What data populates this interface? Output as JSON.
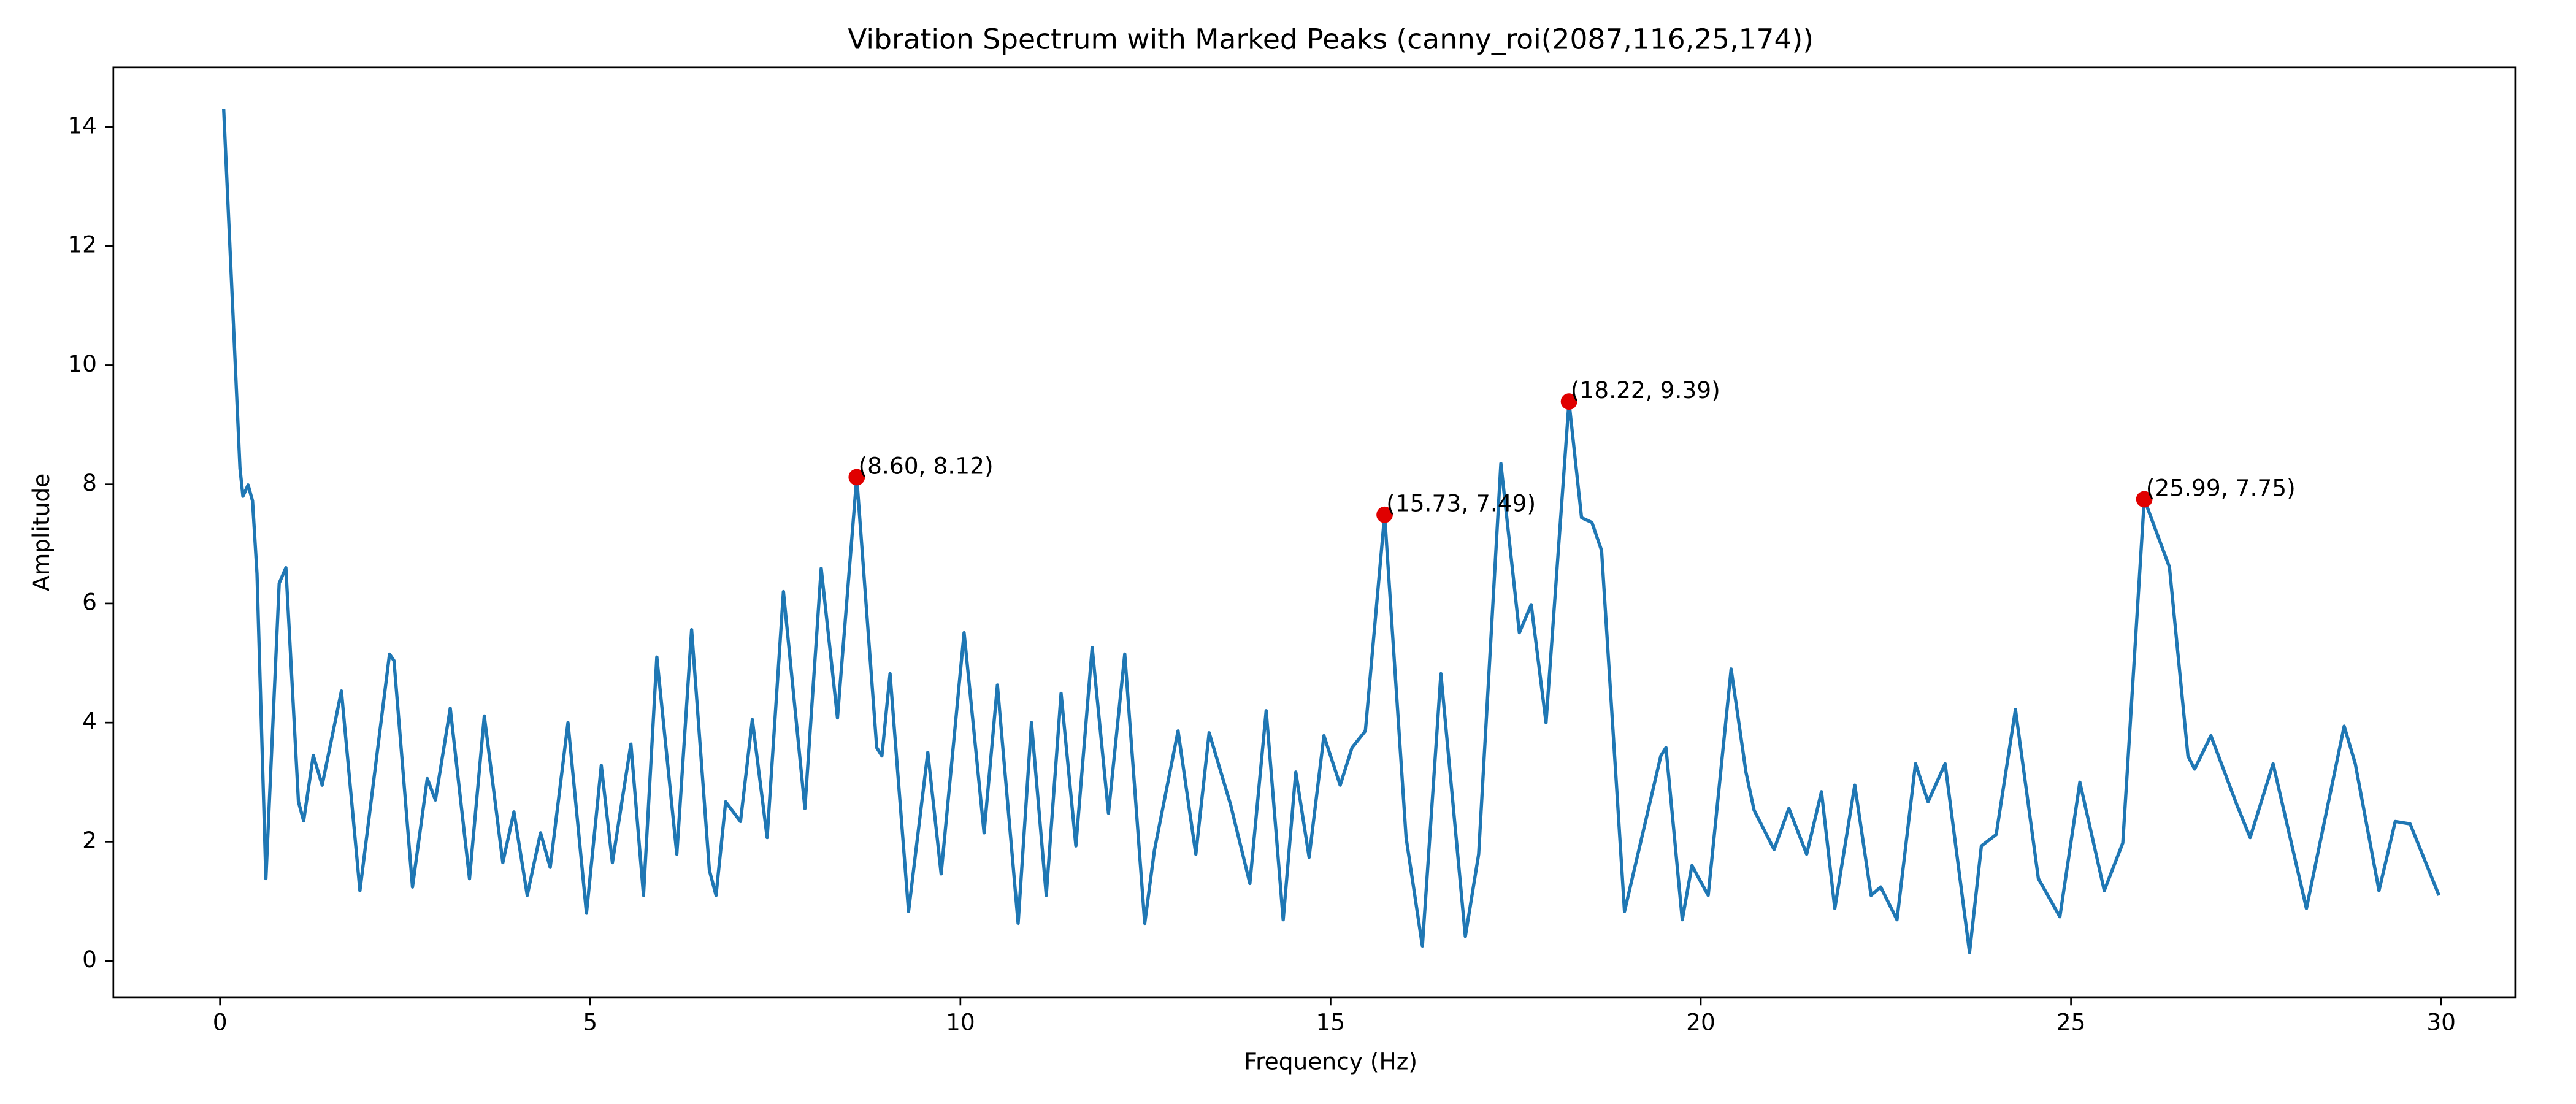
{
  "chart_data": {
    "type": "line",
    "title": "Vibration Spectrum with Marked Peaks (canny_roi(2087,116,25,174))",
    "xlabel": "Frequency (Hz)",
    "ylabel": "Amplitude",
    "xlim": [
      -1.44,
      31.0
    ],
    "ylim": [
      -0.61,
      15.0
    ],
    "xticks": [
      0,
      5,
      10,
      15,
      20,
      25,
      30
    ],
    "yticks": [
      0,
      2,
      4,
      6,
      8,
      10,
      12,
      14
    ],
    "x": [
      0.05,
      0.27,
      0.31,
      0.38,
      0.44,
      0.5,
      0.62,
      0.8,
      0.89,
      1.06,
      1.13,
      1.26,
      1.38,
      1.64,
      1.89,
      2.29,
      2.35,
      2.6,
      2.8,
      2.91,
      3.11,
      3.37,
      3.57,
      3.82,
      3.97,
      4.15,
      4.33,
      4.46,
      4.7,
      4.95,
      5.15,
      5.3,
      5.55,
      5.72,
      5.9,
      6.17,
      6.37,
      6.61,
      6.7,
      6.83,
      7.03,
      7.19,
      7.39,
      7.61,
      7.9,
      8.12,
      8.34,
      8.6,
      8.87,
      8.94,
      9.05,
      9.3,
      9.56,
      9.74,
      10.05,
      10.32,
      10.5,
      10.78,
      10.96,
      11.16,
      11.36,
      11.56,
      11.78,
      12.0,
      12.22,
      12.49,
      12.62,
      12.94,
      13.18,
      13.36,
      13.65,
      13.91,
      14.13,
      14.36,
      14.53,
      14.71,
      14.91,
      15.13,
      15.29,
      15.47,
      15.73,
      16.02,
      16.24,
      16.49,
      16.82,
      17.0,
      17.3,
      17.55,
      17.71,
      17.91,
      18.22,
      18.39,
      18.53,
      18.66,
      18.97,
      19.46,
      19.53,
      19.75,
      19.88,
      20.1,
      20.41,
      20.61,
      20.72,
      20.99,
      21.19,
      21.43,
      21.63,
      21.81,
      22.08,
      22.3,
      22.43,
      22.65,
      22.9,
      23.07,
      23.3,
      23.63,
      23.79,
      23.99,
      24.25,
      24.56,
      24.85,
      25.12,
      25.45,
      25.7,
      25.99,
      26.33,
      26.58,
      26.67,
      26.89,
      27.24,
      27.42,
      27.73,
      28.18,
      28.69,
      28.84,
      29.16,
      29.38,
      29.58,
      29.97
    ],
    "series": [
      {
        "color": "#1f77b4",
        "values": [
          14.3,
          8.27,
          7.8,
          7.99,
          7.72,
          6.5,
          1.38,
          6.34,
          6.6,
          2.67,
          2.35,
          3.45,
          2.95,
          4.53,
          1.18,
          5.15,
          5.04,
          1.24,
          3.06,
          2.7,
          4.24,
          1.38,
          4.11,
          1.65,
          2.5,
          1.1,
          2.15,
          1.57,
          4.0,
          0.8,
          3.28,
          1.65,
          3.64,
          1.1,
          5.1,
          1.79,
          5.56,
          1.52,
          1.1,
          2.67,
          2.34,
          4.05,
          2.07,
          6.2,
          2.56,
          6.59,
          4.08,
          8.12,
          3.58,
          3.44,
          4.82,
          0.83,
          3.5,
          1.46,
          5.51,
          2.15,
          4.63,
          0.63,
          4.0,
          1.1,
          4.49,
          1.93,
          5.26,
          2.48,
          5.15,
          0.63,
          1.85,
          3.86,
          1.79,
          3.83,
          2.62,
          1.3,
          4.2,
          0.69,
          3.17,
          1.74,
          3.78,
          2.95,
          3.58,
          3.86,
          7.49,
          2.07,
          0.25,
          4.82,
          0.41,
          1.79,
          8.35,
          5.51,
          5.98,
          4.0,
          9.39,
          7.44,
          7.36,
          6.89,
          0.83,
          3.44,
          3.58,
          0.69,
          1.6,
          1.1,
          4.9,
          3.17,
          2.53,
          1.87,
          2.56,
          1.79,
          2.84,
          0.88,
          2.95,
          1.1,
          1.24,
          0.69,
          3.31,
          2.67,
          3.31,
          0.14,
          1.93,
          2.12,
          4.22,
          1.38,
          0.74,
          3.0,
          1.18,
          1.98,
          7.75,
          6.61,
          3.44,
          3.22,
          3.78,
          2.62,
          2.07,
          3.31,
          0.88,
          3.94,
          3.31,
          1.18,
          2.34,
          2.3,
          1.1
        ]
      }
    ],
    "peaks": {
      "color": "#e00000",
      "x": [
        8.6,
        15.73,
        18.22,
        25.99
      ],
      "values": [
        8.12,
        7.49,
        9.39,
        7.75
      ],
      "labels": [
        "(8.60, 8.12)",
        "(15.73, 7.49)",
        "(18.22, 9.39)",
        "(25.99, 7.75)"
      ]
    }
  }
}
